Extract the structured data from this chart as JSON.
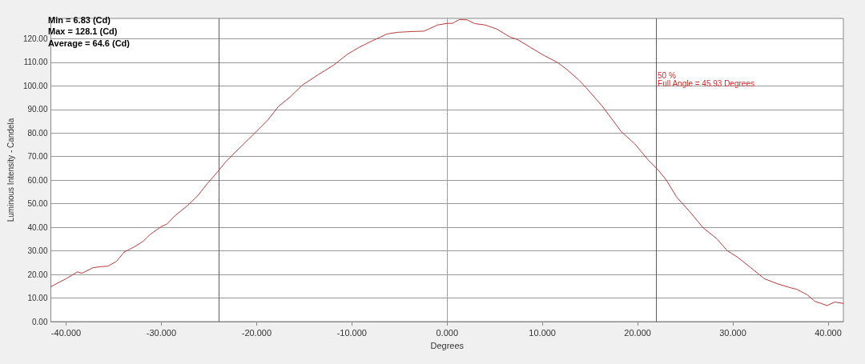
{
  "chart_data": {
    "type": "line",
    "xlabel": "Degrees",
    "ylabel": "Luminous Intensity - Candela",
    "annotations": [
      "Min = 6.83 (Cd)",
      "Max = 128.1 (Cd)",
      "Average = 64.6 (Cd)",
      {
        "text": "50 %\nFull Angle = 45.93 Degrees",
        "x": 21.93,
        "y": 106
      }
    ],
    "x": [
      -41.6,
      -40.0,
      -38.8,
      -38.35,
      -37.2,
      -36.4,
      -35.6,
      -34.7,
      -33.9,
      -32.8,
      -31.9,
      -31.2,
      -30.0,
      -29.4,
      -28.6,
      -27.2,
      -26.2,
      -25.2,
      -24.1,
      -23.3,
      -22.2,
      -20.2,
      -18.8,
      -17.7,
      -16.5,
      -15.2,
      -13.5,
      -11.9,
      -10.5,
      -9.3,
      -7.9,
      -6.3,
      -5.2,
      -3.8,
      -2.4,
      -1.0,
      0.0,
      0.56,
      1.26,
      2.1,
      2.9,
      4.0,
      5.2,
      6.6,
      7.4,
      8.8,
      10.2,
      11.6,
      12.7,
      13.8,
      14.6,
      16.3,
      18.3,
      19.7,
      21.1,
      22.2,
      23.0,
      24.1,
      25.5,
      26.9,
      28.3,
      29.4,
      30.5,
      31.9,
      33.3,
      34.7,
      36.1,
      36.7,
      37.8,
      38.6,
      39.2,
      39.9,
      40.7,
      41.6
    ],
    "series": [
      {
        "color": "#b83a3a",
        "values": [
          14.8,
          18.2,
          21.1,
          20.5,
          22.8,
          23.3,
          23.5,
          25.6,
          29.5,
          31.8,
          34.1,
          36.9,
          40.3,
          41.4,
          44.8,
          49.4,
          53.3,
          58.4,
          63.5,
          67.5,
          72.0,
          79.9,
          85.6,
          91.3,
          95.2,
          100.3,
          104.8,
          108.8,
          113.3,
          116.2,
          119.0,
          122.0,
          122.7,
          123.0,
          123.2,
          125.8,
          126.5,
          126.5,
          128.1,
          128.0,
          126.4,
          125.8,
          124.1,
          120.7,
          119.6,
          116.2,
          112.8,
          109.9,
          106.5,
          102.6,
          99.2,
          91.3,
          80.5,
          75.4,
          68.6,
          64.1,
          60.1,
          52.8,
          46.5,
          39.7,
          35.2,
          30.1,
          27.3,
          22.8,
          18.2,
          16.0,
          14.3,
          13.7,
          11.4,
          8.6,
          7.8,
          6.8,
          8.3,
          7.7
        ]
      }
    ],
    "xlim": [
      -41.6,
      41.6
    ],
    "xticks": [
      {
        "value": -40,
        "label": "-40.000"
      },
      {
        "value": -30,
        "label": "-30.000"
      },
      {
        "value": -20,
        "label": "-20.000"
      },
      {
        "value": -10,
        "label": "-10.000"
      },
      {
        "value": 0,
        "label": "0.000"
      },
      {
        "value": 10,
        "label": "10.000"
      },
      {
        "value": 20,
        "label": "20.000"
      },
      {
        "value": 30,
        "label": "30.000"
      },
      {
        "value": 40,
        "label": "40.000"
      }
    ],
    "ylim": [
      0,
      128.6
    ],
    "yticks": [
      {
        "value": 0,
        "label": "0.00"
      },
      {
        "value": 10,
        "label": "10.00"
      },
      {
        "value": 20,
        "label": "20.00"
      },
      {
        "value": 30,
        "label": "30.00"
      },
      {
        "value": 40,
        "label": "40.00"
      },
      {
        "value": 50,
        "label": "50.00"
      },
      {
        "value": 60,
        "label": "60.00"
      },
      {
        "value": 70,
        "label": "70.00"
      },
      {
        "value": 80,
        "label": "80.00"
      },
      {
        "value": 90,
        "label": "90.00"
      },
      {
        "value": 100,
        "label": "100.00"
      },
      {
        "value": 110,
        "label": "110.00"
      },
      {
        "value": 120,
        "label": "120.00"
      }
    ],
    "ref_lines": [
      {
        "axis": "x",
        "value": 0,
        "color": "#a0a0a0"
      },
      {
        "axis": "x",
        "value": -24.0,
        "color": "#d42a2a"
      },
      {
        "axis": "x",
        "value": 21.93,
        "color": "#d42a2a"
      }
    ],
    "grid": "y",
    "marker": "none",
    "line_style": "solid"
  }
}
